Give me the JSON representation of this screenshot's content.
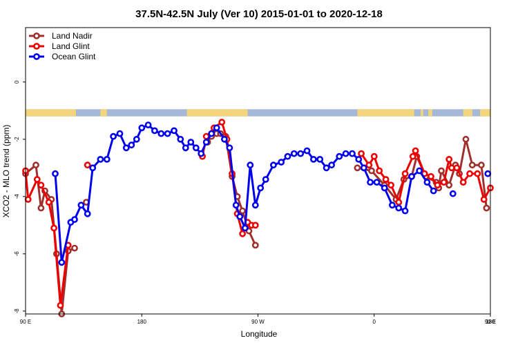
{
  "chart_data": {
    "type": "line",
    "title": "37.5N-42.5N July (Ver 10)   2015-01-01 to 2020-12-18",
    "xlabel": "Longitude",
    "ylabel": "XCO2 - MLO trend (ppm)",
    "xlim": [
      90,
      450
    ],
    "ylim": [
      -8.1,
      1.9
    ],
    "x_ticks": [
      {
        "value": 90,
        "label": "90 E"
      },
      {
        "value": 180,
        "label": "180"
      },
      {
        "value": 270,
        "label": "90 W"
      },
      {
        "value": 360,
        "label": "0"
      },
      {
        "value": 450,
        "label": "90 E"
      },
      {
        "value": 540,
        "label": "180"
      }
    ],
    "y_ticks": [
      {
        "value": 0,
        "label": "0"
      },
      {
        "value": -2,
        "label": "-2"
      },
      {
        "value": -4,
        "label": "-4"
      },
      {
        "value": -6,
        "label": "-6"
      },
      {
        "value": -8,
        "label": "-8"
      }
    ],
    "legend_position": "top-left",
    "land_strip": {
      "y_range": [
        -1.2,
        -0.95
      ],
      "ocean_color": "#a6b8d8",
      "land_color": "#f3d57c",
      "land_ranges": [
        [
          90,
          129
        ],
        [
          148,
          153
        ],
        [
          215,
          262
        ],
        [
          347,
          391
        ],
        [
          396,
          398
        ],
        [
          402,
          405
        ],
        [
          429,
          436
        ],
        [
          442,
          450
        ]
      ]
    },
    "series": [
      {
        "name": "Land Nadir",
        "color": "#a0302c",
        "segments": [
          [
            [
              90,
              -3.2
            ],
            [
              98,
              -2.9
            ],
            [
              102,
              -4.4
            ],
            [
              105,
              -3.8
            ],
            [
              110,
              -4.1
            ],
            [
              114,
              -6.0
            ],
            [
              118,
              -8.1
            ],
            [
              123,
              -5.9
            ],
            [
              128,
              -5.8
            ]
          ],
          [
            [
              137,
              -4.2
            ]
          ],
          [
            [
              231,
              -2.1
            ],
            [
              234,
              -1.9
            ],
            [
              238,
              -1.8
            ],
            [
              241,
              -1.8
            ],
            [
              245,
              -1.9
            ],
            [
              250,
              -3.3
            ],
            [
              254,
              -4.0
            ],
            [
              258,
              -4.5
            ],
            [
              263,
              -5.2
            ],
            [
              268,
              -5.7
            ]
          ],
          [
            [
              347,
              -3.0
            ],
            [
              358,
              -3.1
            ],
            [
              368,
              -3.6
            ],
            [
              377,
              -4.1
            ],
            [
              383,
              -3.4
            ],
            [
              389,
              -3.3
            ],
            [
              393,
              -2.6
            ],
            [
              400,
              -3.3
            ],
            [
              408,
              -3.5
            ],
            [
              410,
              -3.7
            ],
            [
              412,
              -3.1
            ],
            [
              418,
              -3.6
            ],
            [
              423,
              -2.9
            ],
            [
              426,
              -3.2
            ],
            [
              431,
              -2.0
            ],
            [
              436,
              -2.9
            ],
            [
              443,
              -2.9
            ],
            [
              447,
              -4.4
            ]
          ]
        ]
      },
      {
        "name": "Land Glint",
        "color": "#ee0000",
        "segments": [
          [
            [
              90,
              -3.1
            ],
            [
              92,
              -4.1
            ],
            [
              99,
              -3.4
            ],
            [
              102,
              -3.6
            ],
            [
              108,
              -4.2
            ],
            [
              112,
              -5.1
            ],
            [
              117,
              -7.8
            ],
            [
              123,
              -5.7
            ]
          ],
          [
            [
              138,
              -2.9
            ]
          ],
          [
            [
              227,
              -2.6
            ],
            [
              230,
              -1.9
            ],
            [
              236,
              -1.6
            ],
            [
              242,
              -1.4
            ],
            [
              246,
              -2.0
            ],
            [
              250,
              -3.2
            ],
            [
              254,
              -4.6
            ],
            [
              258,
              -5.3
            ],
            [
              262,
              -4.9
            ],
            [
              265,
              -5.0
            ],
            [
              268,
              -5.0
            ]
          ],
          [
            [
              350,
              -2.5
            ],
            [
              356,
              -2.9
            ],
            [
              360,
              -2.6
            ],
            [
              364,
              -3.1
            ],
            [
              369,
              -3.4
            ],
            [
              373,
              -3.6
            ],
            [
              379,
              -4.2
            ],
            [
              384,
              -3.2
            ],
            [
              390,
              -2.6
            ],
            [
              392,
              -2.4
            ],
            [
              399,
              -3.2
            ],
            [
              404,
              -3.3
            ],
            [
              409,
              -3.6
            ],
            [
              414,
              -3.5
            ],
            [
              418,
              -2.7
            ],
            [
              420,
              -3.0
            ],
            [
              424,
              -3.0
            ],
            [
              429,
              -3.5
            ],
            [
              434,
              -3.2
            ],
            [
              440,
              -3.2
            ],
            [
              445,
              -4.1
            ],
            [
              450,
              -3.7
            ]
          ]
        ]
      },
      {
        "name": "Ocean Glint",
        "color": "#0000ee",
        "segments": [
          [
            [
              113,
              -3.2
            ],
            [
              118,
              -6.3
            ],
            [
              125,
              -4.9
            ],
            [
              128,
              -4.8
            ],
            [
              133,
              -4.3
            ],
            [
              138,
              -4.6
            ],
            [
              142,
              -3.0
            ],
            [
              148,
              -2.7
            ],
            [
              153,
              -2.7
            ],
            [
              158,
              -1.9
            ],
            [
              163,
              -1.8
            ],
            [
              168,
              -2.3
            ],
            [
              172,
              -2.2
            ],
            [
              176,
              -2.0
            ],
            [
              180,
              -1.6
            ],
            [
              185,
              -1.5
            ],
            [
              190,
              -1.7
            ],
            [
              195,
              -1.8
            ],
            [
              200,
              -1.8
            ],
            [
              205,
              -1.7
            ],
            [
              210,
              -2.0
            ],
            [
              214,
              -2.3
            ],
            [
              218,
              -2.1
            ],
            [
              222,
              -2.3
            ],
            [
              226,
              -2.5
            ],
            [
              230,
              -2.1
            ],
            [
              234,
              -1.8
            ],
            [
              238,
              -1.6
            ],
            [
              244,
              -2.0
            ],
            [
              248,
              -2.3
            ],
            [
              253,
              -4.3
            ],
            [
              256,
              -4.7
            ],
            [
              260,
              -5.1
            ],
            [
              264,
              -2.9
            ],
            [
              268,
              -4.3
            ],
            [
              272,
              -3.7
            ],
            [
              276,
              -3.4
            ],
            [
              282,
              -2.9
            ],
            [
              288,
              -2.8
            ],
            [
              293,
              -2.6
            ],
            [
              298,
              -2.5
            ],
            [
              303,
              -2.5
            ],
            [
              308,
              -2.4
            ],
            [
              313,
              -2.7
            ],
            [
              318,
              -2.7
            ],
            [
              323,
              -3.0
            ],
            [
              327,
              -2.9
            ],
            [
              333,
              -2.6
            ],
            [
              338,
              -2.5
            ],
            [
              343,
              -2.5
            ],
            [
              348,
              -2.7
            ],
            [
              352,
              -3.0
            ],
            [
              357,
              -3.5
            ],
            [
              362,
              -3.5
            ],
            [
              368,
              -3.7
            ],
            [
              374,
              -4.3
            ],
            [
              379,
              -4.4
            ],
            [
              384,
              -4.5
            ],
            [
              389,
              -3.3
            ],
            [
              395,
              -3.1
            ],
            [
              401,
              -3.5
            ],
            [
              406,
              -3.8
            ]
          ],
          [
            [
              421,
              -3.9
            ]
          ],
          [
            [
              448,
              -3.2
            ]
          ]
        ]
      }
    ]
  }
}
